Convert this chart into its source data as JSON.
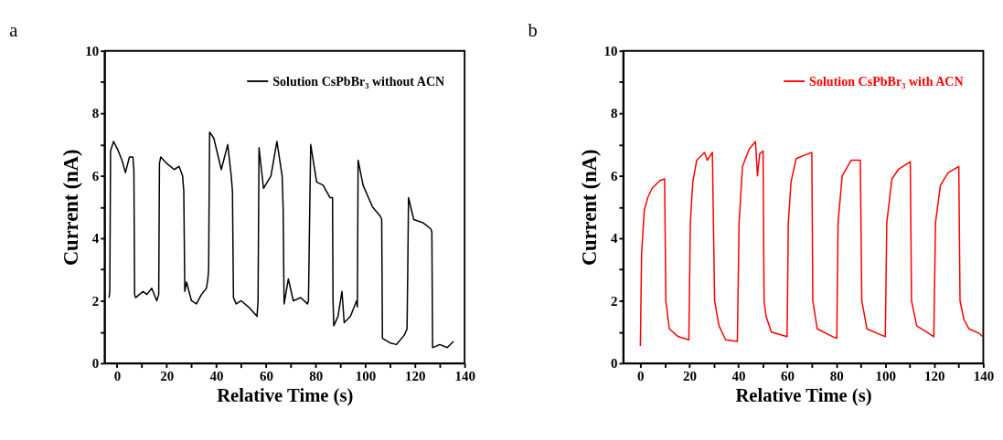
{
  "chart_data": [
    {
      "type": "line",
      "title": "a",
      "xlabel": "Relative Time (s)",
      "ylabel": "Current (nA)",
      "legend": "top right",
      "xlim": [
        -5,
        140
      ],
      "ylim": [
        0,
        10
      ],
      "xticks": [
        0,
        {
          "value": 10,
          "label": null
        },
        20,
        {
          "value": 30,
          "label": null
        },
        40,
        {
          "value": 50,
          "label": null
        },
        60,
        {
          "value": 70,
          "label": null
        },
        80,
        {
          "value": 90,
          "label": null
        },
        100,
        {
          "value": 110,
          "label": null
        },
        120,
        {
          "value": 130,
          "label": null
        },
        140
      ],
      "yticks": [
        0,
        {
          "value": 1,
          "label": null
        },
        2,
        {
          "value": 3,
          "label": null
        },
        4,
        {
          "value": 5,
          "label": null
        },
        6,
        {
          "value": 7,
          "label": null
        },
        8,
        {
          "value": 9,
          "label": null
        },
        10
      ],
      "series": [
        {
          "name": "Solution CsPbBr₃ without ACN",
          "color": "#000000",
          "x": [
            -3.2,
            -2.9,
            -2.6,
            -1.4,
            0.5,
            2.0,
            3.4,
            5.0,
            6.4,
            6.8,
            7.1,
            7.5,
            9.0,
            10.5,
            12.0,
            14.0,
            16.0,
            16.8,
            17.1,
            17.6,
            20.0,
            23.0,
            25.0,
            26.4,
            26.9,
            27.3,
            28.0,
            30.0,
            32.0,
            34.0,
            36.0,
            36.6,
            36.9,
            37.3,
            39.0,
            42.0,
            44.6,
            46.0,
            46.5,
            46.9,
            48.0,
            50.0,
            53.0,
            56.4,
            56.8,
            57.2,
            59.0,
            62.0,
            64.4,
            66.5,
            66.9,
            67.3,
            69.0,
            71.0,
            74.0,
            76.7,
            77.1,
            78.0,
            80.4,
            83.0,
            85.8,
            86.8,
            87.0,
            87.3,
            89.0,
            90.6,
            91.5,
            94.0,
            96.5,
            96.8,
            97.1,
            99.1,
            102.9,
            106.1,
            106.6,
            106.9,
            110.0,
            112.5,
            115.7,
            116.8,
            117.1,
            117.4,
            119.5,
            123.2,
            126.4,
            126.8,
            127.1,
            130.0,
            133.0,
            135.5
          ],
          "values": [
            2.1,
            2.3,
            6.8,
            7.1,
            6.8,
            6.5,
            6.1,
            6.6,
            6.6,
            6.2,
            2.2,
            2.1,
            2.2,
            2.3,
            2.2,
            2.4,
            2.0,
            2.2,
            6.4,
            6.6,
            6.4,
            6.2,
            6.3,
            6.0,
            5.5,
            2.3,
            2.6,
            2.0,
            1.9,
            2.2,
            2.4,
            2.7,
            3.0,
            7.4,
            7.2,
            6.2,
            7.0,
            6.0,
            5.5,
            2.1,
            1.9,
            2.0,
            1.8,
            1.5,
            2.0,
            6.9,
            5.6,
            6.0,
            7.1,
            6.0,
            5.0,
            1.9,
            2.7,
            2.0,
            2.1,
            1.9,
            2.0,
            7.0,
            5.8,
            5.7,
            5.3,
            5.3,
            2.0,
            1.2,
            1.5,
            2.3,
            1.3,
            1.5,
            2.0,
            1.8,
            6.5,
            5.7,
            5.0,
            4.7,
            4.6,
            0.8,
            0.65,
            0.6,
            0.9,
            1.1,
            3.0,
            5.3,
            4.6,
            4.5,
            4.3,
            4.2,
            0.5,
            0.6,
            0.5,
            0.7
          ]
        }
      ]
    },
    {
      "type": "line",
      "title": "b",
      "xlabel": "Relative Time (s)",
      "ylabel": "Current (nA)",
      "legend": "top right",
      "xlim": [
        -7,
        140
      ],
      "ylim": [
        0,
        10
      ],
      "xticks": [
        0,
        {
          "value": 10,
          "label": null
        },
        20,
        {
          "value": 30,
          "label": null
        },
        40,
        {
          "value": 50,
          "label": null
        },
        60,
        {
          "value": 70,
          "label": null
        },
        80,
        {
          "value": 90,
          "label": null
        },
        100,
        {
          "value": 110,
          "label": null
        },
        120,
        {
          "value": 130,
          "label": null
        },
        140
      ],
      "yticks": [
        0,
        {
          "value": 1,
          "label": null
        },
        2,
        {
          "value": 3,
          "label": null
        },
        4,
        {
          "value": 5,
          "label": null
        },
        6,
        {
          "value": 7,
          "label": null
        },
        8,
        {
          "value": 9,
          "label": null
        },
        10
      ],
      "series": [
        {
          "name": "Solution CsPbBr₃ with ACN",
          "color": "#ff0000",
          "x": [
            0.0,
            0.5,
            1.6,
            3.0,
            4.8,
            8.0,
            9.9,
            10.4,
            11.8,
            15.5,
            19.8,
            20.4,
            21.4,
            23.0,
            26.2,
            27.3,
            29.4,
            30.3,
            32.1,
            34.8,
            39.6,
            40.3,
            41.7,
            44.4,
            47.0,
            47.8,
            48.7,
            50.1,
            50.5,
            51.3,
            53.5,
            59.9,
            60.4,
            61.5,
            63.6,
            70.0,
            70.4,
            72.2,
            78.6,
            80.2,
            80.7,
            82.4,
            86.1,
            89.8,
            90.4,
            92.5,
            100.0,
            100.6,
            102.7,
            105.3,
            110.2,
            110.7,
            112.8,
            119.8,
            120.5,
            122.5,
            125.7,
            130.0,
            130.5,
            132.1,
            134.2,
            138.5,
            139.8
          ],
          "values": [
            0.55,
            3.5,
            4.9,
            5.3,
            5.6,
            5.85,
            5.9,
            2.0,
            1.1,
            0.85,
            0.75,
            4.5,
            5.8,
            6.5,
            6.75,
            6.5,
            6.75,
            2.0,
            1.2,
            0.75,
            0.7,
            4.5,
            6.3,
            6.85,
            7.1,
            6.0,
            6.7,
            6.8,
            2.0,
            1.5,
            1.0,
            0.85,
            4.5,
            5.8,
            6.55,
            6.75,
            2.0,
            1.1,
            0.85,
            0.8,
            4.5,
            6.0,
            6.5,
            6.5,
            2.0,
            1.1,
            0.85,
            4.5,
            5.9,
            6.2,
            6.45,
            2.0,
            1.2,
            0.85,
            4.5,
            5.7,
            6.1,
            6.3,
            2.0,
            1.4,
            1.1,
            0.95,
            0.85
          ]
        }
      ]
    }
  ]
}
